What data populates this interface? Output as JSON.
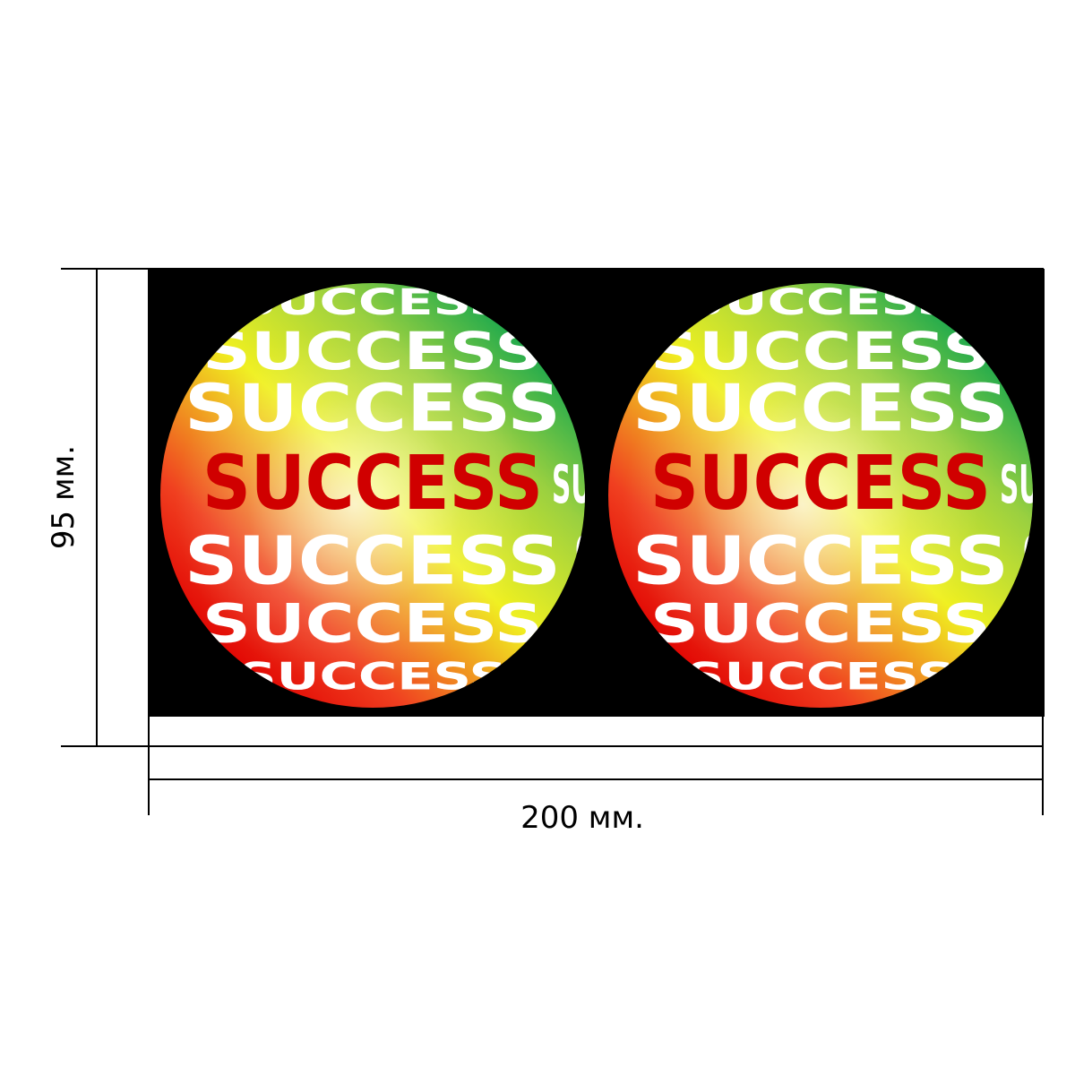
{
  "dimensions": {
    "height_label": "95 мм.",
    "width_label": "200 мм."
  },
  "ball_text": "SUCCESS"
}
